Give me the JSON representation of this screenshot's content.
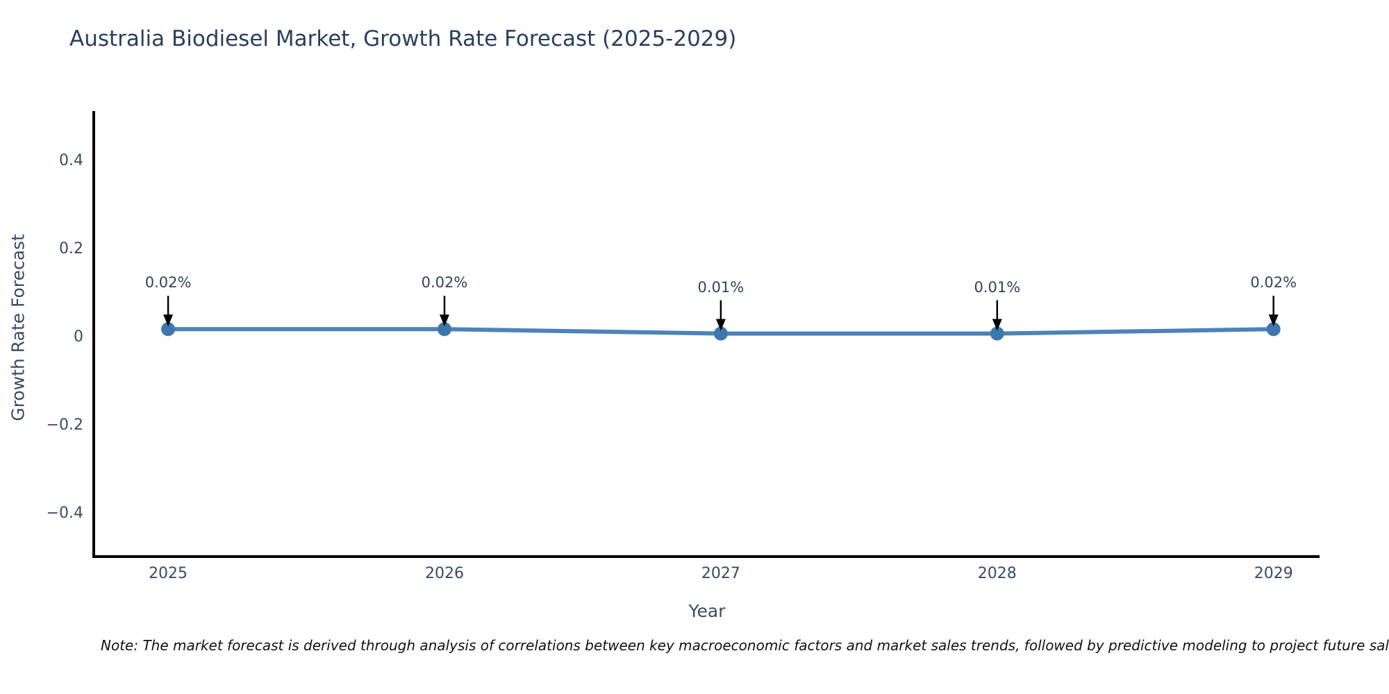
{
  "chart_data": {
    "type": "line",
    "title": "Australia Biodiesel Market, Growth Rate Forecast (2025-2029)",
    "xlabel": "Year",
    "ylabel": "Growth Rate Forecast",
    "x": [
      2025,
      2026,
      2027,
      2028,
      2029
    ],
    "x_labels": [
      "2025",
      "2026",
      "2027",
      "2028",
      "2029"
    ],
    "series": [
      {
        "name": "Growth Rate Forecast",
        "values": [
          0.02,
          0.02,
          0.01,
          0.01,
          0.02
        ],
        "point_labels": [
          "0.02%",
          "0.02%",
          "0.01%",
          "0.01%",
          "0.02%"
        ]
      }
    ],
    "ytick_values": [
      0.4,
      0.2,
      0,
      -0.2,
      -0.4
    ],
    "ytick_labels": [
      "0.4",
      "0.2",
      "0",
      "−0.2",
      "−0.4"
    ],
    "ylim": [
      -0.493,
      0.515
    ],
    "grid": false,
    "legend": "none",
    "annotations_style": "value labels with downward black arrows above each point",
    "colors": {
      "line": "#4c83b8",
      "marker": "#3d77ae",
      "arrow": "#000000",
      "axis": "#000000",
      "title_text": "#2a3f5f",
      "tick_text": "#3b4a63"
    }
  },
  "footnote": "Note: The market forecast is derived through analysis of correlations between key macroeconomic factors and market sales trends, followed by predictive modeling to project future sales."
}
